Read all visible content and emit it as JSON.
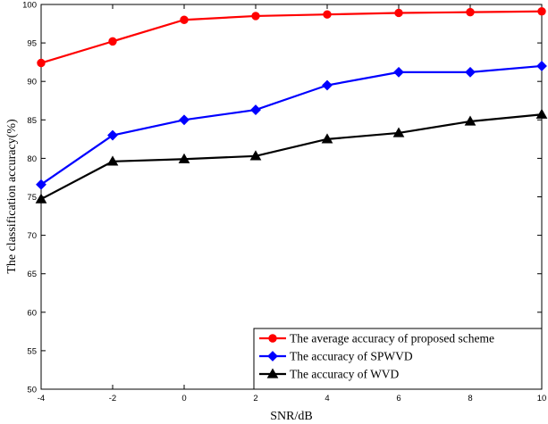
{
  "chart_data": {
    "type": "line",
    "title": "",
    "xlabel": "SNR/dB",
    "ylabel": "The classification accuracy(%)",
    "x": [
      -4,
      -2,
      0,
      2,
      4,
      6,
      8,
      10
    ],
    "xlim": [
      -4,
      10
    ],
    "ylim": [
      50,
      100
    ],
    "xticks": [
      -4,
      -2,
      0,
      2,
      4,
      6,
      8,
      10
    ],
    "yticks": [
      50,
      55,
      60,
      65,
      70,
      75,
      80,
      85,
      90,
      95,
      100
    ],
    "grid": false,
    "legend_position": "bottom-right",
    "series": [
      {
        "name": "The average accuracy of proposed scheme",
        "color": "#ff0000",
        "marker": "circle",
        "values": [
          92.4,
          95.2,
          98.0,
          98.5,
          98.7,
          98.9,
          99.0,
          99.1
        ]
      },
      {
        "name": "The accuracy of SPWVD",
        "color": "#0000ff",
        "marker": "diamond",
        "values": [
          76.6,
          83.0,
          85.0,
          86.3,
          89.5,
          91.2,
          91.2,
          92.0
        ]
      },
      {
        "name": "The accuracy of WVD",
        "color": "#000000",
        "marker": "triangle",
        "values": [
          74.7,
          79.6,
          79.9,
          80.3,
          82.5,
          83.3,
          84.8,
          85.7
        ]
      }
    ]
  }
}
